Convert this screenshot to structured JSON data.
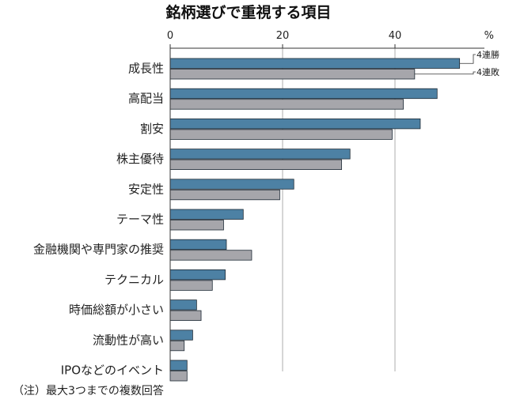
{
  "chart_data": {
    "type": "bar",
    "orientation": "horizontal",
    "title": "銘柄選びで重視する項目",
    "unit": "%",
    "xlim": [
      0,
      55
    ],
    "ticks": [
      0,
      20,
      40
    ],
    "grid": true,
    "categories": [
      "成長性",
      "高配当",
      "割安",
      "株主優待",
      "安定性",
      "テーマ性",
      "金融機関や専門家の推奨",
      "テクニカル",
      "時価総額が小さい",
      "流動性が高い",
      "IPOなどのイベント"
    ],
    "series": [
      {
        "name": "4連勝",
        "color": "#4d81a4",
        "values": [
          51.5,
          47.5,
          44.5,
          32.0,
          22.0,
          13.0,
          10.0,
          9.8,
          4.7,
          4.0,
          3.0
        ]
      },
      {
        "name": "4連敗",
        "color": "#a6a6ab",
        "values": [
          43.5,
          41.5,
          39.5,
          30.5,
          19.5,
          9.5,
          14.5,
          7.5,
          5.5,
          2.5,
          3.0
        ]
      }
    ],
    "note": "（注）最大3つまでの複数回答"
  }
}
